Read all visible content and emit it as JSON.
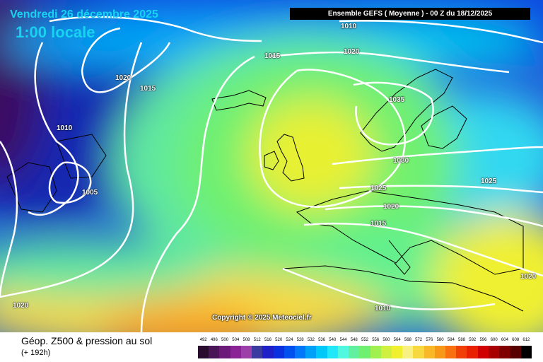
{
  "header": {
    "date": "Vendredi 26 décembre 2025",
    "time": "1:00 locale",
    "run_info": "Ensemble GEFS  ( Moyenne )  -  00 Z du 18/12/2025"
  },
  "map": {
    "copyright": "Copyright © 2025 Meteociel.fr",
    "isobar_labels": [
      "1010",
      "1020",
      "1015",
      "1020",
      "1015",
      "1010",
      "1035",
      "1005",
      "1030",
      "1025",
      "1025",
      "1020",
      "1015",
      "1020",
      "1020",
      "1010"
    ]
  },
  "footer": {
    "title": "Géop. Z500 & pression au sol",
    "lead_time": "(+ 192h)"
  },
  "legend": {
    "ticks": [
      "492",
      "496",
      "500",
      "504",
      "508",
      "512",
      "516",
      "520",
      "524",
      "528",
      "532",
      "536",
      "540",
      "544",
      "548",
      "552",
      "556",
      "560",
      "564",
      "568",
      "572",
      "576",
      "580",
      "584",
      "588",
      "592",
      "596",
      "600",
      "604",
      "608",
      "612"
    ],
    "colors": [
      "#2a0c2e",
      "#4a1658",
      "#6c1a7a",
      "#8a2496",
      "#9c3fa8",
      "#3a3aa0",
      "#2020c8",
      "#0a30e0",
      "#0050f0",
      "#0078f8",
      "#00a0f8",
      "#00c8f8",
      "#20e8f8",
      "#50f8e0",
      "#60f0a0",
      "#70f070",
      "#a0f050",
      "#d0f040",
      "#f0f030",
      "#f8f080",
      "#f8d840",
      "#f8b828",
      "#f89818",
      "#f87010",
      "#f04008",
      "#e82000",
      "#d00000",
      "#a80000",
      "#800000",
      "#580000",
      "#000000"
    ]
  }
}
